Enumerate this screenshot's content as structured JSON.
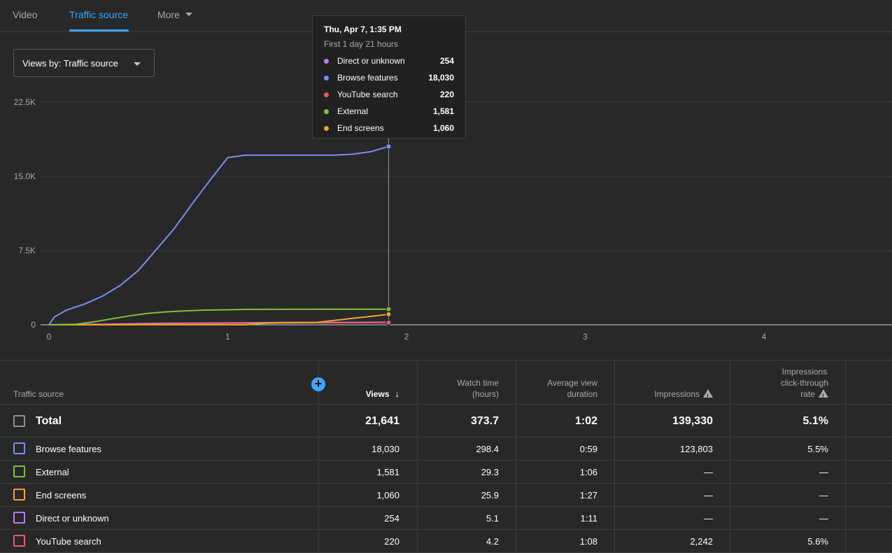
{
  "tabs": [
    {
      "label": "Video"
    },
    {
      "label": "Traffic source"
    },
    {
      "label": "More"
    }
  ],
  "views_by_label": "Views by: Traffic source",
  "tooltip": {
    "date": "Thu, Apr 7, 1:35 PM",
    "subtitle": "First 1 day 21 hours",
    "rows": [
      {
        "name": "Direct or unknown",
        "value": "254",
        "color": "#b57ef0"
      },
      {
        "name": "Browse features",
        "value": "18,030",
        "color": "#7d8ef2"
      },
      {
        "name": "YouTube search",
        "value": "220",
        "color": "#e45a72"
      },
      {
        "name": "External",
        "value": "1,581",
        "color": "#7fc13c"
      },
      {
        "name": "End screens",
        "value": "1,060",
        "color": "#f2a131"
      }
    ]
  },
  "chart_data": {
    "type": "line",
    "xlabel": "",
    "ylabel": "",
    "xlim": [
      0,
      4.7
    ],
    "ylim": [
      0,
      22500
    ],
    "y_ticks": [
      "0",
      "7.5K",
      "15.0K",
      "22.5K"
    ],
    "x_ticks": [
      "0",
      "1",
      "2",
      "3",
      "4"
    ],
    "grid": true,
    "series": [
      {
        "name": "Browse features",
        "color": "#7d8ef2",
        "x": [
          0,
          0.03,
          0.1,
          0.2,
          0.3,
          0.4,
          0.5,
          0.6,
          0.7,
          0.8,
          0.9,
          1.0,
          1.1,
          1.2,
          1.4,
          1.6,
          1.7,
          1.8,
          1.9
        ],
        "y": [
          0,
          800,
          1500,
          2100,
          2900,
          4000,
          5500,
          7600,
          9700,
          12200,
          14600,
          16900,
          17150,
          17150,
          17150,
          17150,
          17250,
          17500,
          18030
        ]
      },
      {
        "name": "External",
        "color": "#7fc13c",
        "x": [
          0,
          0.15,
          0.25,
          0.35,
          0.45,
          0.55,
          0.65,
          0.75,
          0.85,
          1.0,
          1.1,
          1.5,
          1.9
        ],
        "y": [
          0,
          50,
          300,
          600,
          900,
          1150,
          1300,
          1400,
          1480,
          1520,
          1560,
          1575,
          1581
        ]
      },
      {
        "name": "End screens",
        "color": "#f2a131",
        "x": [
          0,
          1.1,
          1.2,
          1.3,
          1.5,
          1.6,
          1.7,
          1.8,
          1.9
        ],
        "y": [
          0,
          10,
          150,
          230,
          250,
          450,
          650,
          850,
          1060
        ]
      },
      {
        "name": "Direct or unknown",
        "color": "#b57ef0",
        "x": [
          0,
          0.3,
          0.6,
          1.0,
          1.4,
          1.9
        ],
        "y": [
          0,
          60,
          150,
          200,
          230,
          254
        ]
      },
      {
        "name": "YouTube search",
        "color": "#e45a72",
        "x": [
          0,
          0.3,
          0.6,
          1.0,
          1.4,
          1.9
        ],
        "y": [
          0,
          30,
          90,
          150,
          190,
          220
        ]
      }
    ],
    "cursor_x": 1.9
  },
  "table": {
    "headers": {
      "source": "Traffic source",
      "views": "Views",
      "watch_time_1": "Watch time",
      "watch_time_2": "(hours)",
      "avd_1": "Average view",
      "avd_2": "duration",
      "impressions": "Impressions",
      "ctr_1": "Impressions",
      "ctr_2": "click-through",
      "ctr_3": "rate"
    },
    "total": {
      "name": "Total",
      "views": "21,641",
      "watch": "373.7",
      "avd": "1:02",
      "impr": "139,330",
      "ctr": "5.1%"
    },
    "rows": [
      {
        "name": "Browse features",
        "views": "18,030",
        "watch": "298.4",
        "avd": "0:59",
        "impr": "123,803",
        "ctr": "5.5%",
        "color": "#7d8ef2"
      },
      {
        "name": "External",
        "views": "1,581",
        "watch": "29.3",
        "avd": "1:06",
        "impr": "—",
        "ctr": "—",
        "color": "#7fc13c"
      },
      {
        "name": "End screens",
        "views": "1,060",
        "watch": "25.9",
        "avd": "1:27",
        "impr": "—",
        "ctr": "—",
        "color": "#f2a131"
      },
      {
        "name": "Direct or unknown",
        "views": "254",
        "watch": "5.1",
        "avd": "1:11",
        "impr": "—",
        "ctr": "—",
        "color": "#b57ef0"
      },
      {
        "name": "YouTube search",
        "views": "220",
        "watch": "4.2",
        "avd": "1:08",
        "impr": "2,242",
        "ctr": "5.6%",
        "color": "#e45a72"
      }
    ]
  }
}
